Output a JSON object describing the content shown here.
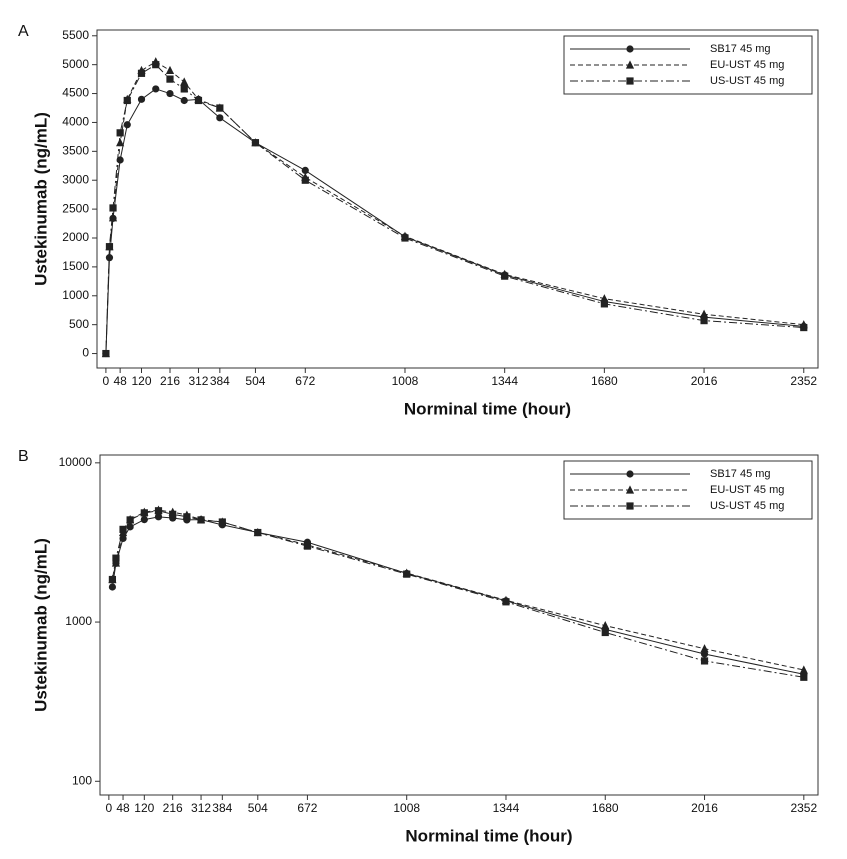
{
  "chart_data": [
    {
      "type": "line",
      "panel": "A",
      "x_label": "Norminal time (hour)",
      "y_label": "Ustekinumab (ng/mL)",
      "x": [
        0,
        12,
        24,
        48,
        72,
        120,
        168,
        216,
        264,
        312,
        384,
        504,
        672,
        1008,
        1344,
        1680,
        2016,
        2352
      ],
      "xlim": [
        -30,
        2400
      ],
      "xticks": [
        0,
        48,
        120,
        216,
        312,
        384,
        504,
        672,
        1008,
        1344,
        1680,
        2016,
        2352
      ],
      "ylim": [
        -250,
        5600
      ],
      "yticks": [
        0,
        500,
        1000,
        1500,
        2000,
        2500,
        3000,
        3500,
        4000,
        4500,
        5000,
        5500
      ],
      "log_y": false,
      "legend": "top-right",
      "series": [
        {
          "name": "SB17 45 mg",
          "color": "#222222",
          "dash": "solid",
          "marker": "circle",
          "values": [
            0,
            1660,
            2340,
            3350,
            3960,
            4400,
            4580,
            4500,
            4380,
            4400,
            4080,
            3650,
            3170,
            2020,
            1360,
            900,
            630,
            470
          ]
        },
        {
          "name": "EU-UST 45 mg",
          "color": "#222222",
          "dash": "dashed",
          "marker": "triangle",
          "values": [
            0,
            1850,
            2350,
            3650,
            4400,
            4900,
            5050,
            4900,
            4700,
            4400,
            4250,
            3650,
            3050,
            2030,
            1370,
            950,
            680,
            500
          ]
        },
        {
          "name": "US-UST 45 mg",
          "color": "#222222",
          "dash": "dashdot",
          "marker": "square",
          "values": [
            0,
            1850,
            2520,
            3820,
            4380,
            4850,
            5000,
            4750,
            4580,
            4380,
            4250,
            3650,
            3000,
            2000,
            1340,
            860,
            570,
            450
          ]
        }
      ]
    },
    {
      "type": "line",
      "panel": "B",
      "x_label": "Norminal time (hour)",
      "y_label": "Ustekinumab (ng/mL)",
      "x": [
        0,
        12,
        24,
        48,
        72,
        120,
        168,
        216,
        264,
        312,
        384,
        504,
        672,
        1008,
        1344,
        1680,
        2016,
        2352
      ],
      "xlim": [
        -30,
        2400
      ],
      "xticks": [
        0,
        48,
        120,
        216,
        312,
        384,
        504,
        672,
        1008,
        1344,
        1680,
        2016,
        2352
      ],
      "ylim": [
        82,
        11200
      ],
      "yticks": [
        100,
        1000,
        10000
      ],
      "log_y": true,
      "legend": "top-right",
      "series": [
        {
          "name": "SB17 45 mg",
          "color": "#222222",
          "dash": "solid",
          "marker": "circle",
          "values": [
            null,
            1660,
            2340,
            3350,
            3960,
            4400,
            4580,
            4500,
            4380,
            4400,
            4080,
            3650,
            3170,
            2020,
            1360,
            900,
            630,
            470
          ]
        },
        {
          "name": "EU-UST 45 mg",
          "color": "#222222",
          "dash": "dashed",
          "marker": "triangle",
          "values": [
            null,
            1850,
            2350,
            3650,
            4400,
            4900,
            5050,
            4900,
            4700,
            4400,
            4250,
            3650,
            3050,
            2030,
            1370,
            950,
            680,
            500
          ]
        },
        {
          "name": "US-UST 45 mg",
          "color": "#222222",
          "dash": "dashdot",
          "marker": "square",
          "values": [
            null,
            1850,
            2520,
            3820,
            4380,
            4850,
            5000,
            4750,
            4580,
            4380,
            4250,
            3650,
            3000,
            2000,
            1340,
            860,
            570,
            450
          ]
        }
      ]
    }
  ]
}
